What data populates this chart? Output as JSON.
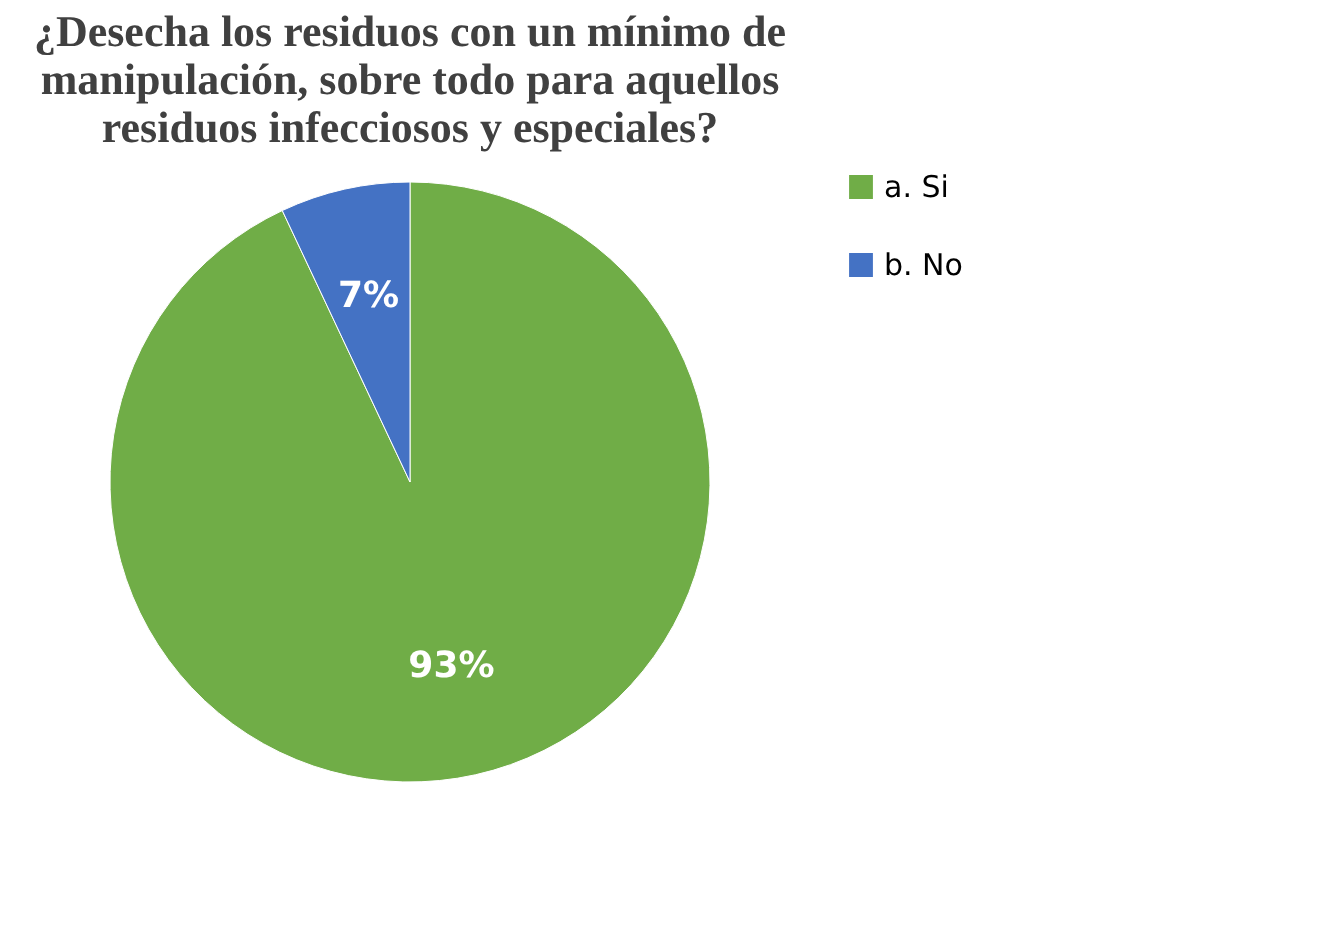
{
  "chart_data": {
    "type": "pie",
    "title": [
      "¿Desecha los residuos con un mínimo de",
      "manipulación, sobre todo para aquellos",
      "residuos infecciosos y especiales?"
    ],
    "categories": [
      "a. Si",
      "b. No"
    ],
    "values": [
      93,
      7
    ],
    "colors": [
      "#70ad47",
      "#4472c4"
    ],
    "value_labels": [
      "93%",
      "7%"
    ],
    "legend": "right"
  }
}
